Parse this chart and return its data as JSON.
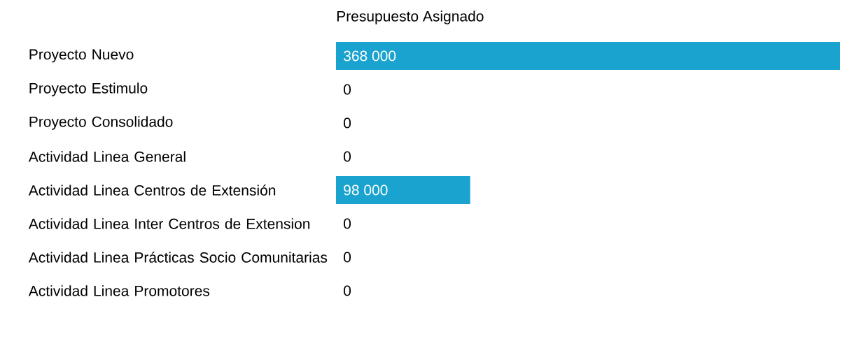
{
  "chart_data": {
    "type": "bar",
    "orientation": "horizontal",
    "title": "Presupuesto Asignado",
    "categories": [
      "Proyecto Nuevo",
      "Proyecto Estimulo",
      "Proyecto Consolidado",
      "Actividad Linea General",
      "Actividad Linea Centros de Extensión",
      "Actividad Linea Inter Centros de Extension",
      "Actividad Linea Prácticas Socio Comunitarias",
      "Actividad Linea Promotores"
    ],
    "values": [
      368000,
      0,
      0,
      0,
      98000,
      0,
      0,
      0
    ],
    "value_labels": [
      "368 000",
      "0",
      "0",
      "0",
      "98 000",
      "0",
      "0",
      "0"
    ],
    "color": "#1aa3cf",
    "tick_labels": "y"
  }
}
